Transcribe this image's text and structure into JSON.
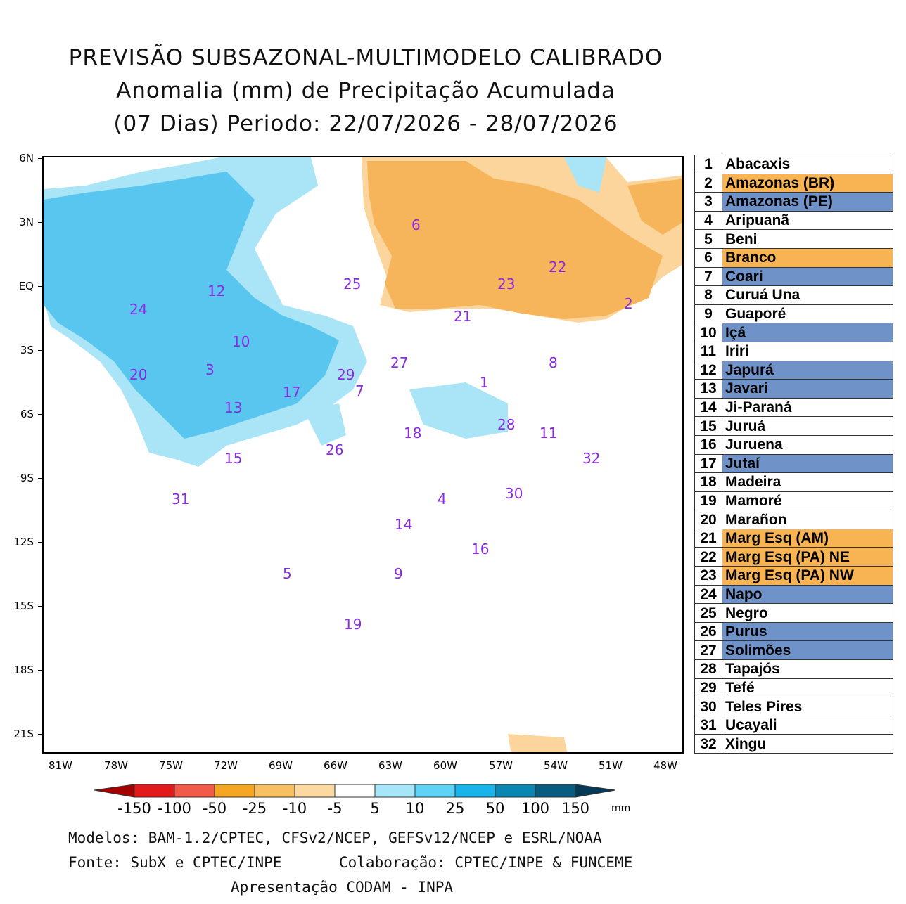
{
  "title": {
    "line1": "PREVISÃO SUBSAZONAL-MULTIMODELO CALIBRADO",
    "line2": "Anomalia (mm) de Precipitação Acumulada",
    "line3": "(07 Dias) Periodo: 22/07/2026 - 28/07/2026"
  },
  "axes": {
    "y_ticks": [
      "6N",
      "3N",
      "EQ",
      "3S",
      "6S",
      "9S",
      "12S",
      "15S",
      "18S",
      "21S"
    ],
    "x_ticks": [
      "81W",
      "78W",
      "75W",
      "72W",
      "69W",
      "66W",
      "63W",
      "60W",
      "57W",
      "54W",
      "51W",
      "48W"
    ],
    "lon_range": [
      -81,
      -48
    ],
    "lat_range": [
      -22,
      6
    ]
  },
  "basin_labels": [
    {
      "id": "1"
    },
    {
      "id": "2"
    },
    {
      "id": "3"
    },
    {
      "id": "4"
    },
    {
      "id": "5"
    },
    {
      "id": "6"
    },
    {
      "id": "7"
    },
    {
      "id": "8"
    },
    {
      "id": "9"
    },
    {
      "id": "10"
    },
    {
      "id": "11"
    },
    {
      "id": "12"
    },
    {
      "id": "13"
    },
    {
      "id": "14"
    },
    {
      "id": "15"
    },
    {
      "id": "16"
    },
    {
      "id": "17"
    },
    {
      "id": "18"
    },
    {
      "id": "19"
    },
    {
      "id": "20"
    },
    {
      "id": "21"
    },
    {
      "id": "22"
    },
    {
      "id": "23"
    },
    {
      "id": "24"
    },
    {
      "id": "25"
    },
    {
      "id": "26"
    },
    {
      "id": "27"
    },
    {
      "id": "28"
    },
    {
      "id": "29"
    },
    {
      "id": "30"
    },
    {
      "id": "31"
    },
    {
      "id": "32"
    }
  ],
  "legend": [
    {
      "num": "1",
      "name": "Abacaxis",
      "status": "neutral"
    },
    {
      "num": "2",
      "name": "Amazonas (BR)",
      "status": "dry"
    },
    {
      "num": "3",
      "name": "Amazonas (PE)",
      "status": "wet"
    },
    {
      "num": "4",
      "name": "Aripuanã",
      "status": "neutral"
    },
    {
      "num": "5",
      "name": "Beni",
      "status": "neutral"
    },
    {
      "num": "6",
      "name": "Branco",
      "status": "dry"
    },
    {
      "num": "7",
      "name": "Coari",
      "status": "wet"
    },
    {
      "num": "8",
      "name": "Curuá Una",
      "status": "neutral"
    },
    {
      "num": "9",
      "name": "Guaporé",
      "status": "neutral"
    },
    {
      "num": "10",
      "name": "Içá",
      "status": "wet"
    },
    {
      "num": "11",
      "name": "Iriri",
      "status": "neutral"
    },
    {
      "num": "12",
      "name": "Japurá",
      "status": "wet"
    },
    {
      "num": "13",
      "name": "Javari",
      "status": "wet"
    },
    {
      "num": "14",
      "name": "Ji-Paraná",
      "status": "neutral"
    },
    {
      "num": "15",
      "name": "Juruá",
      "status": "neutral"
    },
    {
      "num": "16",
      "name": "Juruena",
      "status": "neutral"
    },
    {
      "num": "17",
      "name": "Jutaí",
      "status": "wet"
    },
    {
      "num": "18",
      "name": "Madeira",
      "status": "neutral"
    },
    {
      "num": "19",
      "name": "Mamoré",
      "status": "neutral"
    },
    {
      "num": "20",
      "name": "Marañon",
      "status": "neutral"
    },
    {
      "num": "21",
      "name": "Marg Esq (AM)",
      "status": "dry"
    },
    {
      "num": "22",
      "name": "Marg Esq (PA) NE",
      "status": "dry"
    },
    {
      "num": "23",
      "name": "Marg Esq (PA) NW",
      "status": "dry"
    },
    {
      "num": "24",
      "name": "Napo",
      "status": "wet"
    },
    {
      "num": "25",
      "name": "Negro",
      "status": "neutral"
    },
    {
      "num": "26",
      "name": "Purus",
      "status": "wet"
    },
    {
      "num": "27",
      "name": "Solimões",
      "status": "wet"
    },
    {
      "num": "28",
      "name": "Tapajós",
      "status": "neutral"
    },
    {
      "num": "29",
      "name": "Tefé",
      "status": "neutral"
    },
    {
      "num": "30",
      "name": "Teles Pires",
      "status": "neutral"
    },
    {
      "num": "31",
      "name": "Ucayali",
      "status": "neutral"
    },
    {
      "num": "32",
      "name": "Xingu",
      "status": "neutral"
    }
  ],
  "status_colors": {
    "dry": "#f8b452",
    "wet": "#6f93c9",
    "neutral": "#ffffff"
  },
  "colorbar": {
    "labels": [
      "-150",
      "-100",
      "-50",
      "-25",
      "-10",
      "-5",
      "5",
      "10",
      "25",
      "50",
      "100",
      "150"
    ],
    "unit": "mm",
    "colors": [
      "#a50000",
      "#e31a1c",
      "#f25a4a",
      "#f5a623",
      "#f8c062",
      "#fbd9a0",
      "#ffffff",
      "#a6e6f8",
      "#5fd3f5",
      "#19b4ea",
      "#0a86b3",
      "#075c80",
      "#043a55"
    ]
  },
  "anomaly_colors": {
    "dry_strong": "#f6b55a",
    "dry_light": "#fbd59c",
    "wet_light": "#a9e4f7",
    "wet_strong": "#59c6ef"
  },
  "footer": {
    "models": "Modelos: BAM-1.2/CPTEC, CFSv2/NCEP, GEFSv12/NCEP e ESRL/NOAA",
    "source": "Fonte: SubX e CPTEC/INPE",
    "collab": "Colaboração: CPTEC/INPE & FUNCEME",
    "presentation": "Apresentação CODAM - INPA"
  }
}
